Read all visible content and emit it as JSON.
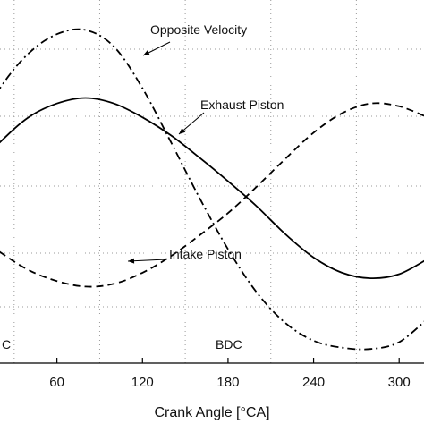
{
  "chart_data": {
    "type": "line",
    "title": "",
    "xlabel": "Crank Angle [°CA]",
    "ylabel": "",
    "xlim": [
      0,
      320
    ],
    "ylim": [
      -1.2,
      1.25
    ],
    "x_ticks": [
      60,
      120,
      180,
      240,
      300
    ],
    "grid": true,
    "legend": "none",
    "series": [
      {
        "name": "Opposite Velocity",
        "style": "dash-dot",
        "x": [
          0,
          20,
          40,
          60,
          80,
          100,
          120,
          140,
          160,
          180,
          200,
          220,
          240,
          260,
          280,
          300,
          320
        ],
        "y": [
          0.37,
          0.73,
          0.98,
          1.12,
          1.15,
          1.03,
          0.73,
          0.34,
          -0.06,
          -0.43,
          -0.74,
          -0.96,
          -1.09,
          -1.14,
          -1.15,
          -1.1,
          -0.93
        ]
      },
      {
        "name": "Exhaust Piston",
        "style": "solid",
        "x": [
          0,
          20,
          40,
          60,
          80,
          100,
          120,
          140,
          160,
          180,
          200,
          220,
          240,
          260,
          280,
          300,
          320
        ],
        "y": [
          0.12,
          0.34,
          0.52,
          0.62,
          0.66,
          0.62,
          0.52,
          0.39,
          0.23,
          0.06,
          -0.12,
          -0.32,
          -0.49,
          -0.6,
          -0.64,
          -0.61,
          -0.5
        ]
      },
      {
        "name": "Intake Piston",
        "style": "dashed",
        "x": [
          0,
          20,
          40,
          60,
          80,
          100,
          120,
          140,
          160,
          180,
          200,
          220,
          240,
          260,
          280,
          300,
          320
        ],
        "y": [
          -0.3,
          -0.45,
          -0.58,
          -0.66,
          -0.7,
          -0.68,
          -0.6,
          -0.48,
          -0.33,
          -0.17,
          0.02,
          0.22,
          0.41,
          0.55,
          0.62,
          0.6,
          0.52
        ]
      }
    ],
    "annotations": [
      {
        "text": "Opposite Velocity",
        "series": "Opposite Velocity"
      },
      {
        "text": "Exhaust Piston",
        "series": "Exhaust Piston"
      },
      {
        "text": "Intake Piston",
        "series": "Intake Piston"
      },
      {
        "text": "C",
        "note": "TDC label cut off at left edge"
      },
      {
        "text": "BDC"
      }
    ]
  }
}
